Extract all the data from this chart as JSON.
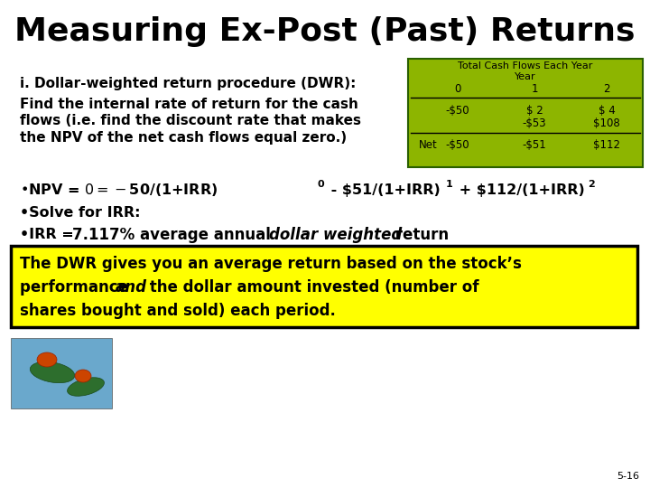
{
  "title": "Measuring Ex-Post (Past) Returns",
  "title_fontsize": 26,
  "bg_color": "#ffffff",
  "text_color": "#000000",
  "dwr_label": "i. Dollar-weighted return procedure (DWR):",
  "dwr_desc_line1": "Find the internal rate of return for the cash",
  "dwr_desc_line2": "flows (i.e. find the discount rate that makes",
  "dwr_desc_line3": "the NPV of the net cash flows equal zero.)",
  "table_title": "Total Cash Flows Each Year",
  "table_subtitle": "Year",
  "table_bg": "#8db500",
  "table_border": "#2a6000",
  "npv_part1": "•NPV = $0 = -$50/(1+IRR)",
  "npv_sup1": "0",
  "npv_part2": " - $51/(1+IRR)",
  "npv_sup2": "1",
  "npv_part3": " + $112/(1+IRR)",
  "npv_sup3": "2",
  "solve_line": "•Solve for IRR:",
  "irr_prefix": "•IRR = ",
  "irr_value": "7.117% average annual ",
  "irr_italic": "dollar weighted",
  "irr_suffix": " return",
  "box_text_1": "The DWR gives you an average return based on the stock’s",
  "box_text_2a": "performance ",
  "box_text_2b": "and",
  "box_text_2c": " the dollar amount invested (number of",
  "box_text_3": "shares bought and sold) each period.",
  "box_bg": "#ffff00",
  "box_border": "#000000",
  "slide_number": "5-16"
}
